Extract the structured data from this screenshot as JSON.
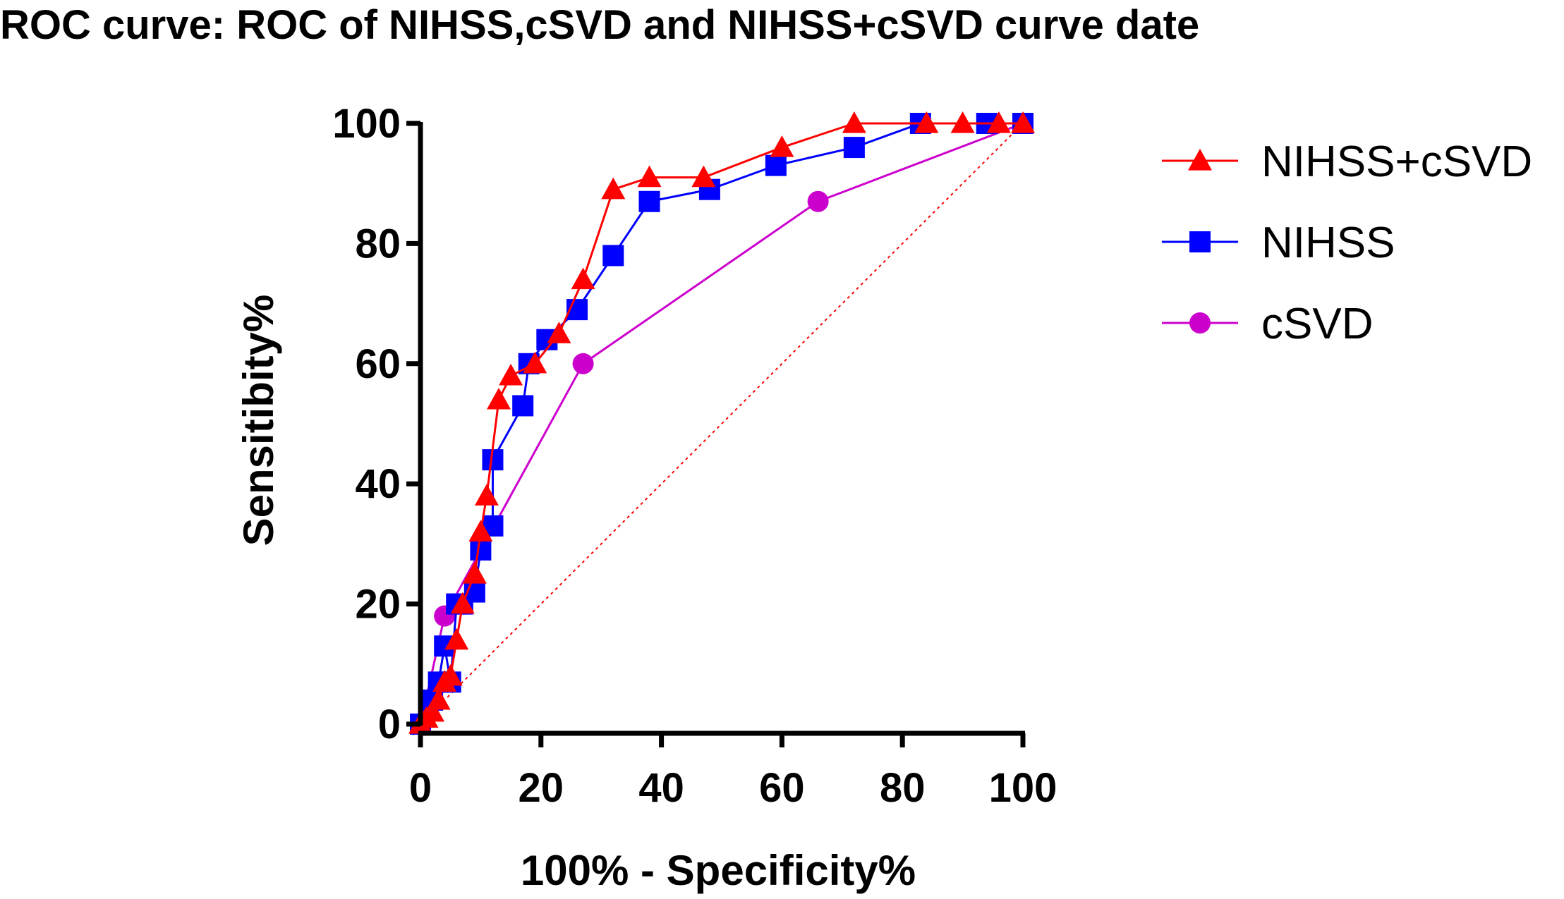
{
  "chart_data": {
    "type": "line",
    "title": "ROC curve: ROC of NIHSS,cSVD and NIHSS+cSVD curve date",
    "xlabel": "100% - Specificity%",
    "ylabel": "Sensitibity%",
    "xlim": [
      0,
      100
    ],
    "ylim": [
      0,
      100
    ],
    "xticks": [
      0,
      20,
      40,
      60,
      80,
      100
    ],
    "yticks": [
      0,
      20,
      40,
      60,
      80,
      100
    ],
    "grid": false,
    "legend_position": "top-right, outside plot",
    "reference_line": {
      "x": [
        0,
        100
      ],
      "y": [
        0,
        100
      ],
      "color": "#ff0000",
      "style": "dotted"
    },
    "series": [
      {
        "name": "NIHSS+cSVD",
        "color": "#ff0000",
        "marker": "triangle",
        "x": [
          0,
          1,
          2,
          3,
          4,
          5,
          6,
          7,
          9,
          10,
          11,
          13,
          15,
          19,
          23,
          27,
          32,
          38,
          47,
          60,
          72,
          84,
          90,
          96,
          100
        ],
        "y": [
          0,
          1,
          2,
          4,
          7,
          8,
          14,
          20,
          25,
          32,
          38,
          54,
          58,
          60,
          65,
          74,
          89,
          91,
          91,
          96,
          100,
          100,
          100,
          100,
          100
        ]
      },
      {
        "name": "NIHSS",
        "color": "#0000ff",
        "marker": "square",
        "x": [
          0,
          2,
          3,
          4,
          5,
          6,
          7,
          9,
          10,
          12,
          12,
          17,
          18,
          21,
          26,
          32,
          38,
          48,
          59,
          72,
          83,
          94,
          100
        ],
        "y": [
          0,
          4,
          7,
          13,
          7,
          20,
          20,
          22,
          29,
          33,
          44,
          53,
          60,
          64,
          69,
          78,
          87,
          89,
          93,
          96,
          100,
          100,
          100
        ]
      },
      {
        "name": "cSVD",
        "color": "#cc00cc",
        "marker": "circle",
        "x": [
          0,
          4,
          27,
          66,
          100
        ],
        "y": [
          0,
          18,
          60,
          87,
          100
        ]
      }
    ]
  }
}
